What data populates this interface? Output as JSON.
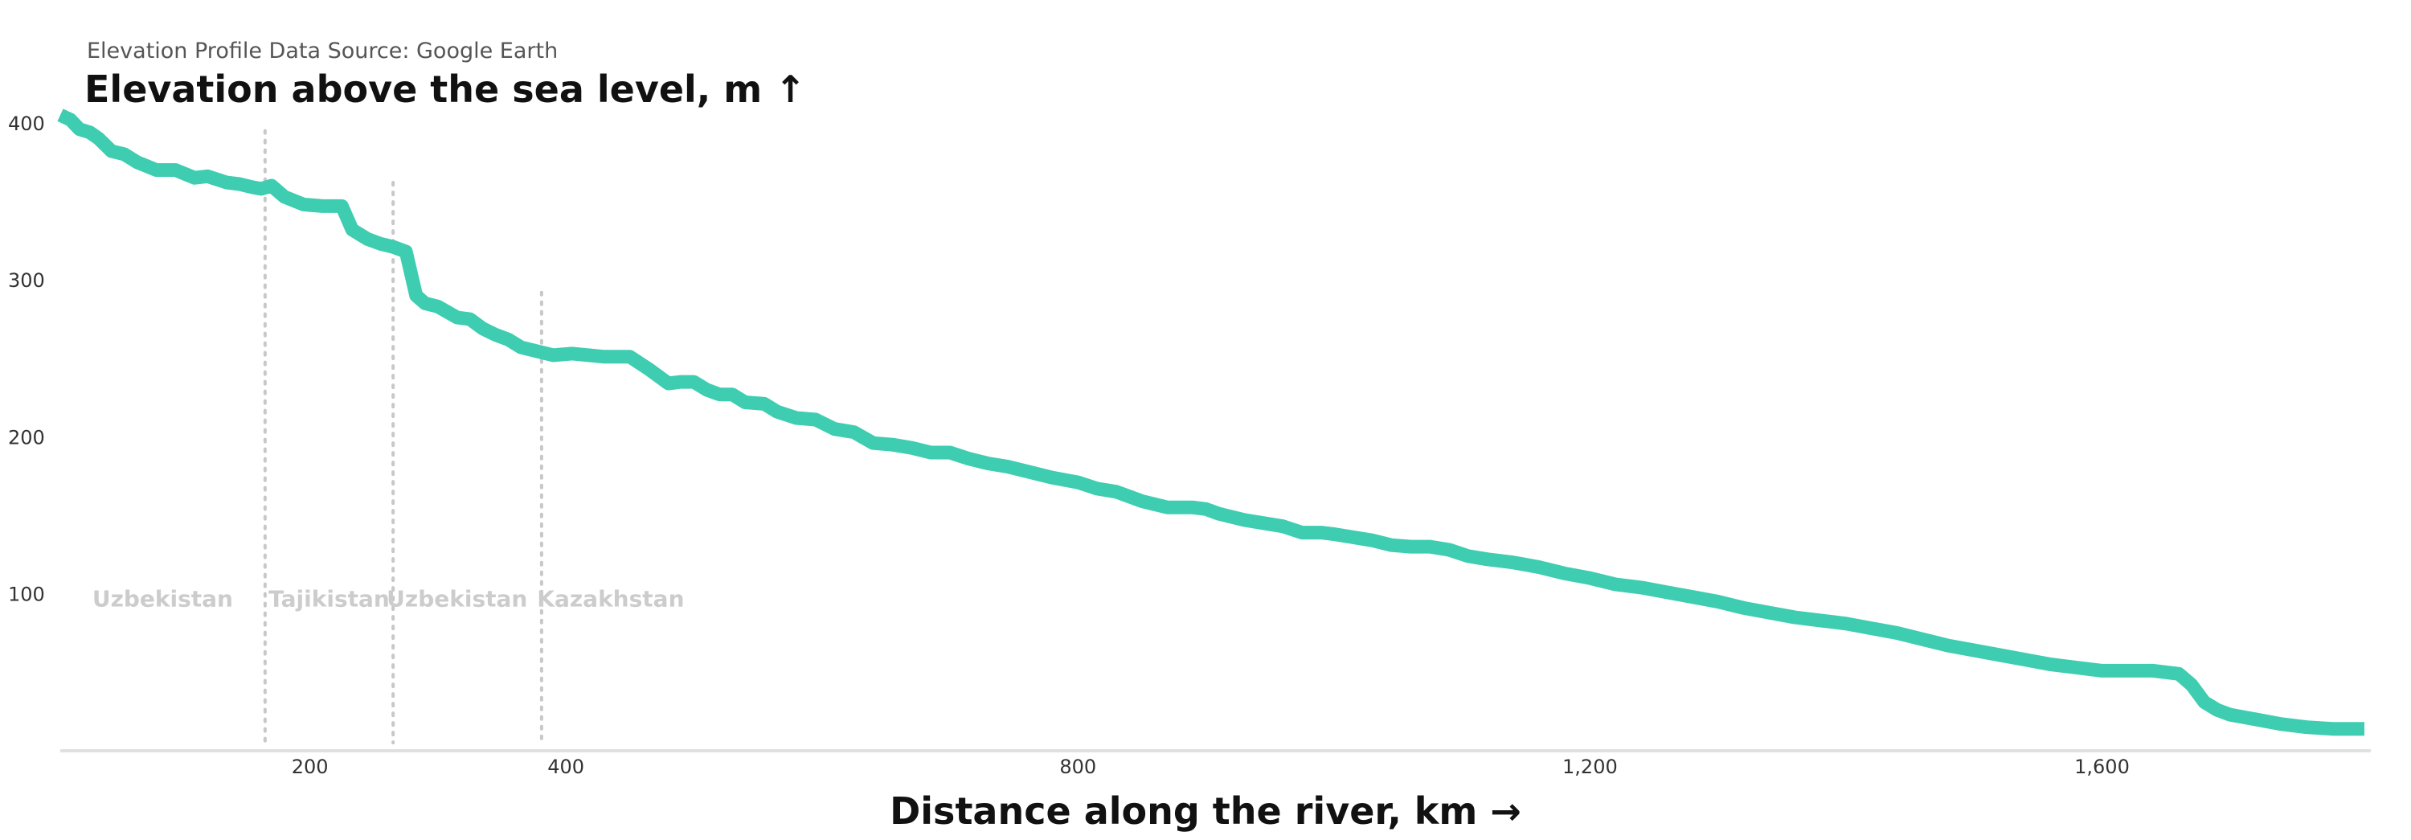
{
  "source_note": "Elevation Profile Data Source: Google Earth",
  "colors": {
    "line": "#3ecdb1",
    "divider": "#c8c8c8",
    "axis": "#e0e0e0",
    "region_label": "#cccccc"
  },
  "chart_data": {
    "type": "line",
    "title": "",
    "ylabel": "Elevation above the sea level, m ↑",
    "xlabel": "Distance along the river, km →",
    "xlim": [
      5,
      1810
    ],
    "ylim": [
      0,
      445
    ],
    "x_ticks": [
      200,
      400,
      800,
      1200,
      1600
    ],
    "y_ticks": [
      100,
      200,
      300,
      400
    ],
    "x_tick_labels": [
      "200",
      "400",
      "800",
      "1,200",
      "1,600"
    ],
    "y_tick_labels": [
      "100",
      "200",
      "300",
      "400"
    ],
    "grid": false,
    "dividers": [
      {
        "x": 165,
        "top": 395
      },
      {
        "x": 265,
        "top": 362
      },
      {
        "x": 381,
        "top": 292
      }
    ],
    "regions": [
      {
        "label": "Uzbekistan",
        "x": 85
      },
      {
        "label": "Tajikistan",
        "x": 215
      },
      {
        "label": "Uzbekistan",
        "x": 315
      },
      {
        "label": "Kazakhstan",
        "x": 435
      }
    ],
    "region_label_y": 92,
    "series": [
      {
        "x": [
          5,
          13,
          20,
          28,
          35,
          45,
          55,
          65,
          80,
          95,
          110,
          120,
          135,
          145,
          155,
          162,
          170,
          180,
          195,
          210,
          220,
          225,
          233,
          245,
          255,
          265,
          275,
          283,
          290,
          300,
          315,
          325,
          335,
          345,
          355,
          365,
          375,
          390,
          405,
          418,
          430,
          450,
          465,
          480,
          490,
          500,
          510,
          520,
          530,
          540,
          555,
          565,
          580,
          595,
          610,
          625,
          640,
          655,
          670,
          685,
          700,
          715,
          730,
          745,
          760,
          780,
          800,
          815,
          830,
          840,
          850,
          860,
          870,
          880,
          890,
          900,
          910,
          920,
          930,
          945,
          960,
          975,
          990,
          1000,
          1015,
          1030,
          1045,
          1060,
          1075,
          1090,
          1105,
          1120,
          1140,
          1160,
          1180,
          1200,
          1220,
          1240,
          1260,
          1280,
          1300,
          1320,
          1340,
          1360,
          1380,
          1400,
          1420,
          1440,
          1460,
          1480,
          1500,
          1520,
          1540,
          1560,
          1580,
          1600,
          1620,
          1640,
          1660,
          1670,
          1680,
          1690,
          1700,
          1720,
          1740,
          1760,
          1780,
          1795,
          1805
        ],
        "y": [
          405,
          402,
          396,
          394,
          390,
          382,
          380,
          375,
          370,
          370,
          365,
          366,
          362,
          361,
          359,
          358,
          360,
          353,
          348,
          347,
          347,
          347,
          332,
          326,
          323,
          321,
          318,
          290,
          285,
          283,
          276,
          275,
          269,
          265,
          262,
          257,
          255,
          252,
          253,
          252,
          251,
          251,
          243,
          234,
          235,
          235,
          230,
          227,
          227,
          222,
          221,
          216,
          212,
          211,
          205,
          203,
          196,
          195,
          193,
          190,
          190,
          186,
          183,
          181,
          178,
          174,
          171,
          167,
          165,
          162,
          159,
          157,
          155,
          155,
          155,
          154,
          151,
          149,
          147,
          145,
          143,
          139,
          139,
          138,
          136,
          134,
          131,
          130,
          130,
          128,
          124,
          122,
          120,
          117,
          113,
          110,
          106,
          104,
          101,
          98,
          95,
          91,
          88,
          85,
          83,
          81,
          78,
          75,
          71,
          67,
          64,
          61,
          58,
          55,
          53,
          51,
          51,
          51,
          49,
          42,
          31,
          26,
          23,
          20,
          17,
          15,
          14,
          14,
          14
        ]
      }
    ]
  }
}
